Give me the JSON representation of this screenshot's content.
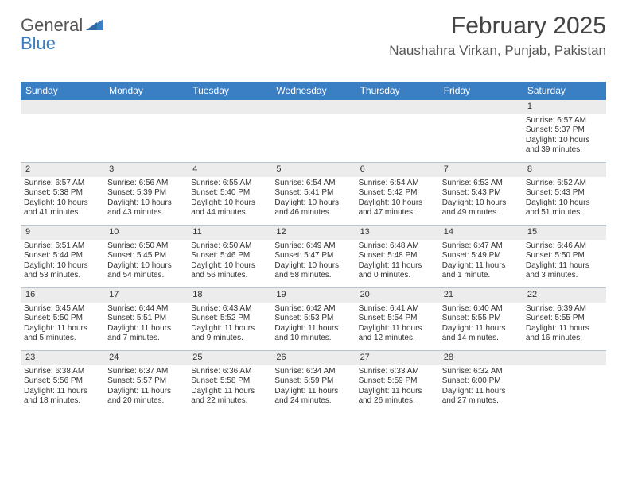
{
  "logo": {
    "line1": "General",
    "line2": "Blue"
  },
  "header": {
    "month_year": "February 2025",
    "location": "Naushahra Virkan, Punjab, Pakistan"
  },
  "colors": {
    "header_bg": "#3a7fc4",
    "header_text": "#ffffff",
    "daynum_bg": "#ececec",
    "border": "#b8c4d0",
    "text": "#333333",
    "background": "#ffffff"
  },
  "day_names": [
    "Sunday",
    "Monday",
    "Tuesday",
    "Wednesday",
    "Thursday",
    "Friday",
    "Saturday"
  ],
  "weeks": [
    [
      null,
      null,
      null,
      null,
      null,
      null,
      {
        "d": "1",
        "sr": "Sunrise: 6:57 AM",
        "ss": "Sunset: 5:37 PM",
        "dl1": "Daylight: 10 hours",
        "dl2": "and 39 minutes."
      }
    ],
    [
      {
        "d": "2",
        "sr": "Sunrise: 6:57 AM",
        "ss": "Sunset: 5:38 PM",
        "dl1": "Daylight: 10 hours",
        "dl2": "and 41 minutes."
      },
      {
        "d": "3",
        "sr": "Sunrise: 6:56 AM",
        "ss": "Sunset: 5:39 PM",
        "dl1": "Daylight: 10 hours",
        "dl2": "and 43 minutes."
      },
      {
        "d": "4",
        "sr": "Sunrise: 6:55 AM",
        "ss": "Sunset: 5:40 PM",
        "dl1": "Daylight: 10 hours",
        "dl2": "and 44 minutes."
      },
      {
        "d": "5",
        "sr": "Sunrise: 6:54 AM",
        "ss": "Sunset: 5:41 PM",
        "dl1": "Daylight: 10 hours",
        "dl2": "and 46 minutes."
      },
      {
        "d": "6",
        "sr": "Sunrise: 6:54 AM",
        "ss": "Sunset: 5:42 PM",
        "dl1": "Daylight: 10 hours",
        "dl2": "and 47 minutes."
      },
      {
        "d": "7",
        "sr": "Sunrise: 6:53 AM",
        "ss": "Sunset: 5:43 PM",
        "dl1": "Daylight: 10 hours",
        "dl2": "and 49 minutes."
      },
      {
        "d": "8",
        "sr": "Sunrise: 6:52 AM",
        "ss": "Sunset: 5:43 PM",
        "dl1": "Daylight: 10 hours",
        "dl2": "and 51 minutes."
      }
    ],
    [
      {
        "d": "9",
        "sr": "Sunrise: 6:51 AM",
        "ss": "Sunset: 5:44 PM",
        "dl1": "Daylight: 10 hours",
        "dl2": "and 53 minutes."
      },
      {
        "d": "10",
        "sr": "Sunrise: 6:50 AM",
        "ss": "Sunset: 5:45 PM",
        "dl1": "Daylight: 10 hours",
        "dl2": "and 54 minutes."
      },
      {
        "d": "11",
        "sr": "Sunrise: 6:50 AM",
        "ss": "Sunset: 5:46 PM",
        "dl1": "Daylight: 10 hours",
        "dl2": "and 56 minutes."
      },
      {
        "d": "12",
        "sr": "Sunrise: 6:49 AM",
        "ss": "Sunset: 5:47 PM",
        "dl1": "Daylight: 10 hours",
        "dl2": "and 58 minutes."
      },
      {
        "d": "13",
        "sr": "Sunrise: 6:48 AM",
        "ss": "Sunset: 5:48 PM",
        "dl1": "Daylight: 11 hours",
        "dl2": "and 0 minutes."
      },
      {
        "d": "14",
        "sr": "Sunrise: 6:47 AM",
        "ss": "Sunset: 5:49 PM",
        "dl1": "Daylight: 11 hours",
        "dl2": "and 1 minute."
      },
      {
        "d": "15",
        "sr": "Sunrise: 6:46 AM",
        "ss": "Sunset: 5:50 PM",
        "dl1": "Daylight: 11 hours",
        "dl2": "and 3 minutes."
      }
    ],
    [
      {
        "d": "16",
        "sr": "Sunrise: 6:45 AM",
        "ss": "Sunset: 5:50 PM",
        "dl1": "Daylight: 11 hours",
        "dl2": "and 5 minutes."
      },
      {
        "d": "17",
        "sr": "Sunrise: 6:44 AM",
        "ss": "Sunset: 5:51 PM",
        "dl1": "Daylight: 11 hours",
        "dl2": "and 7 minutes."
      },
      {
        "d": "18",
        "sr": "Sunrise: 6:43 AM",
        "ss": "Sunset: 5:52 PM",
        "dl1": "Daylight: 11 hours",
        "dl2": "and 9 minutes."
      },
      {
        "d": "19",
        "sr": "Sunrise: 6:42 AM",
        "ss": "Sunset: 5:53 PM",
        "dl1": "Daylight: 11 hours",
        "dl2": "and 10 minutes."
      },
      {
        "d": "20",
        "sr": "Sunrise: 6:41 AM",
        "ss": "Sunset: 5:54 PM",
        "dl1": "Daylight: 11 hours",
        "dl2": "and 12 minutes."
      },
      {
        "d": "21",
        "sr": "Sunrise: 6:40 AM",
        "ss": "Sunset: 5:55 PM",
        "dl1": "Daylight: 11 hours",
        "dl2": "and 14 minutes."
      },
      {
        "d": "22",
        "sr": "Sunrise: 6:39 AM",
        "ss": "Sunset: 5:55 PM",
        "dl1": "Daylight: 11 hours",
        "dl2": "and 16 minutes."
      }
    ],
    [
      {
        "d": "23",
        "sr": "Sunrise: 6:38 AM",
        "ss": "Sunset: 5:56 PM",
        "dl1": "Daylight: 11 hours",
        "dl2": "and 18 minutes."
      },
      {
        "d": "24",
        "sr": "Sunrise: 6:37 AM",
        "ss": "Sunset: 5:57 PM",
        "dl1": "Daylight: 11 hours",
        "dl2": "and 20 minutes."
      },
      {
        "d": "25",
        "sr": "Sunrise: 6:36 AM",
        "ss": "Sunset: 5:58 PM",
        "dl1": "Daylight: 11 hours",
        "dl2": "and 22 minutes."
      },
      {
        "d": "26",
        "sr": "Sunrise: 6:34 AM",
        "ss": "Sunset: 5:59 PM",
        "dl1": "Daylight: 11 hours",
        "dl2": "and 24 minutes."
      },
      {
        "d": "27",
        "sr": "Sunrise: 6:33 AM",
        "ss": "Sunset: 5:59 PM",
        "dl1": "Daylight: 11 hours",
        "dl2": "and 26 minutes."
      },
      {
        "d": "28",
        "sr": "Sunrise: 6:32 AM",
        "ss": "Sunset: 6:00 PM",
        "dl1": "Daylight: 11 hours",
        "dl2": "and 27 minutes."
      },
      null
    ]
  ]
}
